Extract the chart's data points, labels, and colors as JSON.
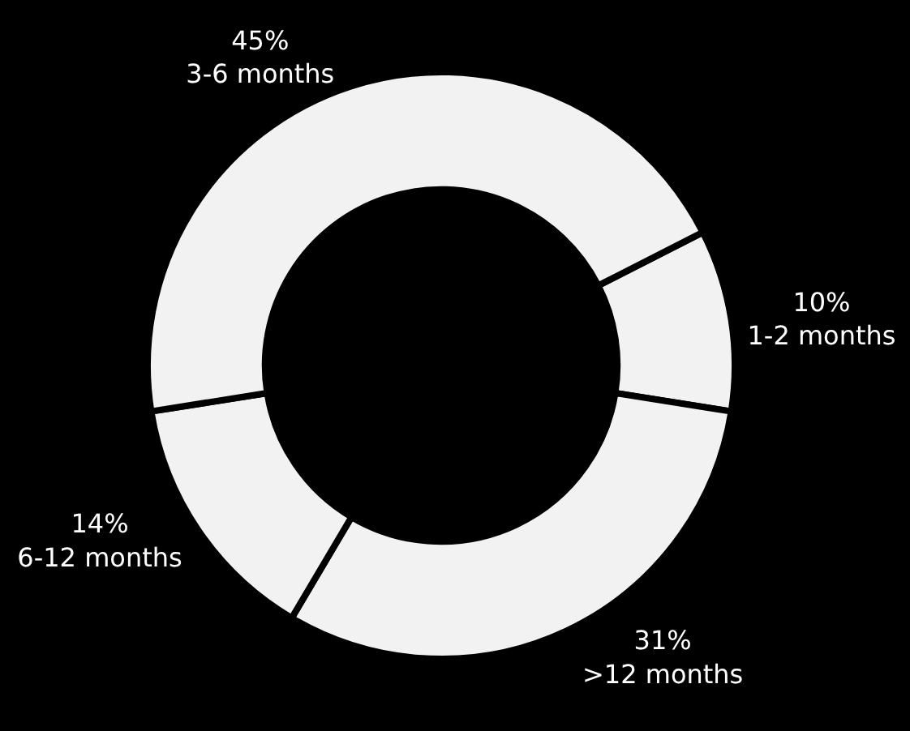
{
  "chart_data": {
    "type": "donut",
    "categories": [
      "1-2 months",
      ">12 months",
      "6-12 months",
      "3-6 months"
    ],
    "values": [
      10,
      31,
      14,
      45
    ],
    "value_labels": [
      "10%",
      "31%",
      "14%",
      "45%"
    ],
    "colors": [
      "#f2f2f2",
      "#f2f2f2",
      "#f2f2f2",
      "#f2f2f2"
    ],
    "legend": false
  }
}
